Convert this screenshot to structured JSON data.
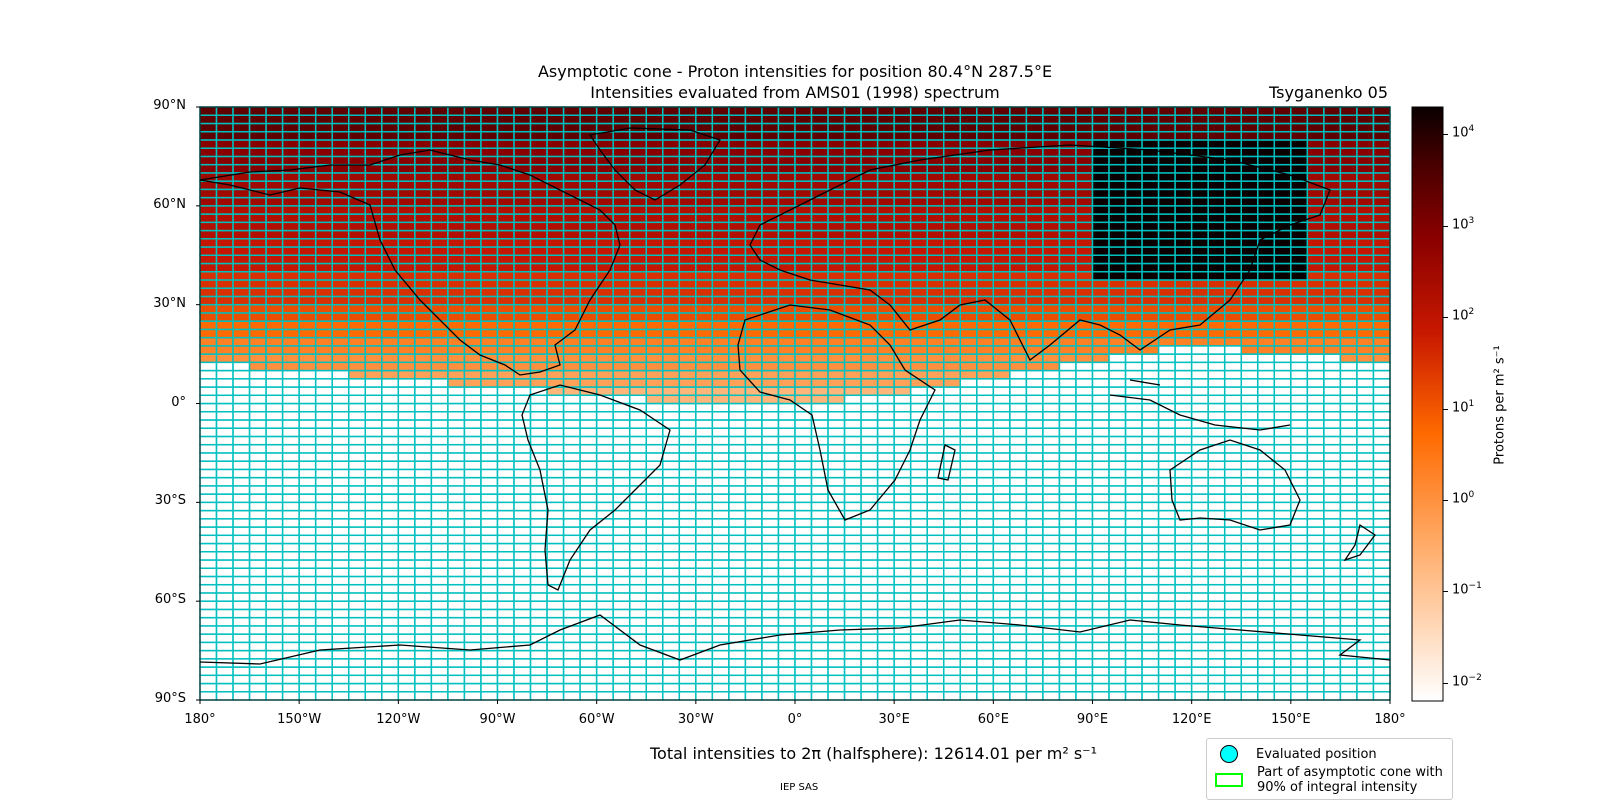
{
  "title": {
    "line1": "Asymptotic cone - Proton intensities for position 80.4°N 287.5°E",
    "line2": "Intensities evaluated from AMS01 (1998) spectrum",
    "model": "Tsyganenko 05"
  },
  "axes": {
    "lat_ticks": [
      "90°N",
      "60°N",
      "30°N",
      "0°",
      "30°S",
      "60°S",
      "90°S"
    ],
    "lon_ticks": [
      "180°",
      "150°W",
      "120°W",
      "90°W",
      "60°W",
      "30°W",
      "0°",
      "30°E",
      "60°E",
      "90°E",
      "120°E",
      "150°E",
      "180°"
    ]
  },
  "colorbar": {
    "label": "Protons per m² s⁻¹",
    "ticks": [
      {
        "base": "10",
        "exp": "4"
      },
      {
        "base": "10",
        "exp": "3"
      },
      {
        "base": "10",
        "exp": "2"
      },
      {
        "base": "10",
        "exp": "1"
      },
      {
        "base": "10",
        "exp": "0"
      },
      {
        "base": "10",
        "exp": "−1"
      },
      {
        "base": "10",
        "exp": "−2"
      }
    ],
    "log_range": [
      -2.2,
      4.3
    ],
    "colormap": "gist_heat_r"
  },
  "summary": {
    "total": "Total intensities to 2π (halfsphere): 12614.01 per m² s⁻¹",
    "credit": "IEP SAS"
  },
  "legend": {
    "evaluated": "Evaluated position",
    "cone_line1": "Part of asymptotic cone with",
    "cone_line2": "90% of integral intensity"
  },
  "colors": {
    "grid_cell_edge": "#00bfbf",
    "evaluated_marker": "#00ffff",
    "cone_outline": "#00ff00",
    "coastline": "#000000"
  },
  "chart_data": {
    "type": "heatmap",
    "projection": "PlateCarree",
    "lon_range": [
      -180,
      180
    ],
    "lat_range": [
      -90,
      90
    ],
    "cell_size_deg": {
      "lon": 5,
      "lat": 2.5
    },
    "value_units": "Protons per m² s⁻¹",
    "log10_intensity_by_latitude_band": [
      {
        "lat_min": 80,
        "lat_max": 90,
        "log10": 3.4
      },
      {
        "lat_min": 70,
        "lat_max": 80,
        "log10": 2.9
      },
      {
        "lat_min": 60,
        "lat_max": 70,
        "log10": 2.5
      },
      {
        "lat_min": 50,
        "lat_max": 60,
        "log10": 2.2
      },
      {
        "lat_min": 40,
        "lat_max": 50,
        "log10": 1.9
      },
      {
        "lat_min": 30,
        "lat_max": 40,
        "log10": 1.5
      },
      {
        "lat_min": 25,
        "lat_max": 30,
        "log10": 1.1
      },
      {
        "lat_min": 20,
        "lat_max": 25,
        "log10": 0.7
      },
      {
        "lat_min": 15,
        "lat_max": 20,
        "log10": 0.3
      },
      {
        "lat_min": 10,
        "lat_max": 15,
        "log10": 0.0
      },
      {
        "lat_min": 5,
        "lat_max": 10,
        "log10": -0.3
      },
      {
        "lat_min": 0,
        "lat_max": 5,
        "log10": -0.7
      }
    ],
    "lower_cutoff_latitude_by_longitude": [
      {
        "lon": -180,
        "lat": 12.5
      },
      {
        "lon": -150,
        "lat": 10
      },
      {
        "lon": -120,
        "lat": 7.5
      },
      {
        "lon": -90,
        "lat": 5
      },
      {
        "lon": -60,
        "lat": 2.5
      },
      {
        "lon": -30,
        "lat": 0
      },
      {
        "lon": 0,
        "lat": 0
      },
      {
        "lon": 30,
        "lat": 2.5
      },
      {
        "lon": 60,
        "lat": 7.5
      },
      {
        "lon": 90,
        "lat": 12.5
      },
      {
        "lon": 120,
        "lat": 17.5
      },
      {
        "lon": 150,
        "lat": 15
      },
      {
        "lon": 180,
        "lat": 12.5
      }
    ],
    "high_intensity_region": {
      "lon_min": 90,
      "lon_max": 155,
      "lat_min": 37.5,
      "lat_max": 80,
      "log10": 4.3
    }
  }
}
